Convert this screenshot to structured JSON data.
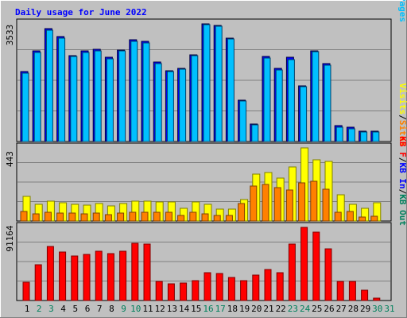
{
  "title": "Daily usage for June 2022",
  "colors": {
    "background": "#c0c0c0",
    "title": "#0000ff",
    "hits": "#00805c",
    "files": "#0000ff",
    "pages": "#00c0ff",
    "visits": "#ffff00",
    "sites": "#ff8000",
    "kbytes": "#ff0000",
    "weekend_day_label": "#00805c",
    "day_label": "#000000"
  },
  "chart_data": [
    {
      "type": "bar",
      "title": "Daily usage for June 2022",
      "panel": "hits-files-pages",
      "ymax_label": "3533",
      "ylim": [
        0,
        3533
      ],
      "legend": [
        {
          "name": "Hits",
          "color": "#00805c"
        },
        {
          "name": "Files",
          "color": "#0000ff"
        },
        {
          "name": "Pages",
          "color": "#00c0ff"
        }
      ],
      "legend_separator": "/",
      "categories": [
        "1",
        "2",
        "3",
        "4",
        "5",
        "6",
        "7",
        "8",
        "9",
        "10",
        "11",
        "12",
        "13",
        "14",
        "15",
        "16",
        "17",
        "18",
        "19",
        "20",
        "21",
        "22",
        "23",
        "24",
        "25",
        "26",
        "27",
        "28",
        "29",
        "30",
        "31"
      ],
      "series": [
        {
          "name": "Hits",
          "values": [
            2100,
            2720,
            3380,
            3150,
            2590,
            2710,
            2760,
            2520,
            2740,
            3050,
            3000,
            2380,
            2120,
            2200,
            2600,
            3540,
            3490,
            3110,
            1250,
            530,
            2550,
            2190,
            2520,
            1680,
            2730,
            2330,
            470,
            420,
            310,
            300,
            0
          ]
        },
        {
          "name": "Pages",
          "values": [
            2060,
            2680,
            3350,
            3110,
            2550,
            2670,
            2730,
            2490,
            2710,
            3010,
            2950,
            2350,
            2090,
            2170,
            2570,
            3520,
            3450,
            3070,
            1220,
            500,
            2500,
            2150,
            2460,
            1640,
            2700,
            2290,
            440,
            390,
            280,
            280,
            0
          ]
        }
      ]
    },
    {
      "type": "bar",
      "panel": "visits-sites",
      "ymax_label": "443",
      "ylim": [
        0,
        443
      ],
      "legend": [
        {
          "name": "Visits",
          "color": "#ffff00"
        },
        {
          "name": "Sites",
          "color": "#ff8000"
        }
      ],
      "legend_separator": "/",
      "categories": [
        "1",
        "2",
        "3",
        "4",
        "5",
        "6",
        "7",
        "8",
        "9",
        "10",
        "11",
        "12",
        "13",
        "14",
        "15",
        "16",
        "17",
        "18",
        "19",
        "20",
        "21",
        "22",
        "23",
        "24",
        "25",
        "26",
        "27",
        "28",
        "29",
        "30",
        "31"
      ],
      "series": [
        {
          "name": "Visits",
          "values": [
            150,
            100,
            118,
            110,
            100,
            97,
            105,
            93,
            108,
            120,
            118,
            117,
            116,
            78,
            117,
            100,
            70,
            70,
            130,
            285,
            295,
            260,
            327,
            443,
            373,
            363,
            157,
            100,
            75,
            110,
            0
          ]
        },
        {
          "name": "Sites",
          "values": [
            60,
            45,
            53,
            50,
            46,
            42,
            48,
            40,
            47,
            55,
            53,
            52,
            52,
            35,
            52,
            44,
            32,
            33,
            105,
            210,
            220,
            200,
            188,
            230,
            242,
            195,
            55,
            60,
            25,
            30,
            0
          ]
        }
      ]
    },
    {
      "type": "bar",
      "panel": "kbytes-in-out",
      "ymax_label": "91164",
      "ylim": [
        0,
        91164
      ],
      "legend": [
        {
          "name": "KB F",
          "color": "#ff0000"
        },
        {
          "name": "KB In",
          "color": "#0000ff"
        },
        {
          "name": "KB Out",
          "color": "#00805c"
        }
      ],
      "legend_separator": "/",
      "categories": [
        "1",
        "2",
        "3",
        "4",
        "5",
        "6",
        "7",
        "8",
        "9",
        "10",
        "11",
        "12",
        "13",
        "14",
        "15",
        "16",
        "17",
        "18",
        "19",
        "20",
        "21",
        "22",
        "23",
        "24",
        "25",
        "26",
        "27",
        "28",
        "29",
        "30",
        "31"
      ],
      "series": [
        {
          "name": "KB F",
          "values": [
            22500,
            44500,
            67000,
            60500,
            55500,
            57500,
            61000,
            58500,
            61500,
            71000,
            70000,
            24000,
            20500,
            22000,
            25000,
            34500,
            34000,
            29000,
            24500,
            31500,
            38500,
            35000,
            70000,
            91500,
            85000,
            64500,
            24000,
            24000,
            13000,
            3000,
            0
          ]
        }
      ]
    }
  ]
}
